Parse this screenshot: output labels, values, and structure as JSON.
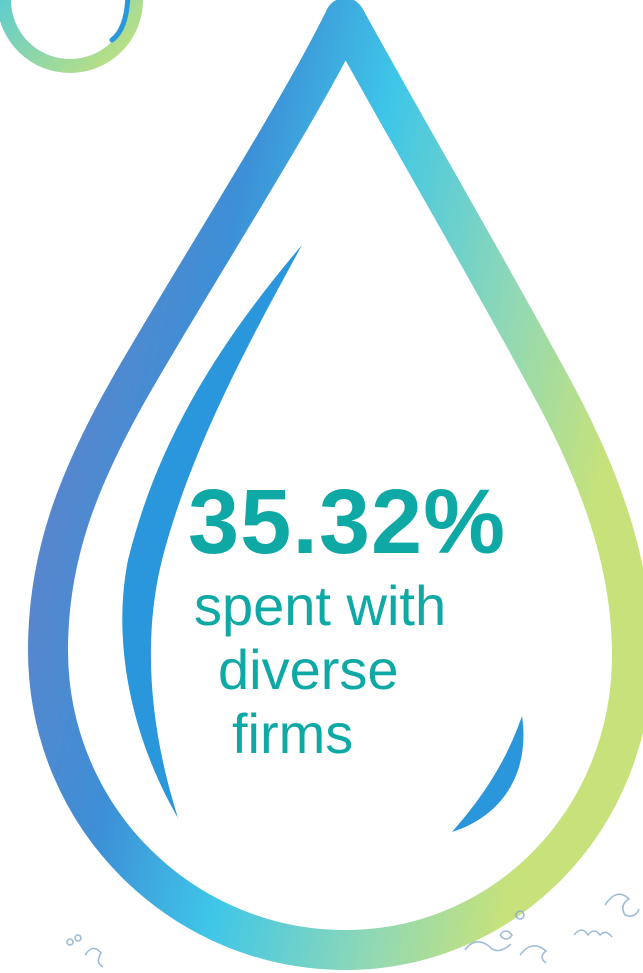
{
  "stat": {
    "value": "35.32%",
    "caption_lines": [
      "spent with",
      "diverse",
      "firms"
    ]
  },
  "colors": {
    "text": "#0fa9a5",
    "gradient_blue": "#3d8fd6",
    "gradient_cyan": "#3ec6e8",
    "gradient_green": "#c7e27a",
    "inner_swoosh": "#2a96dc"
  },
  "icons": [
    "water-drop-outline-icon",
    "ring-icon",
    "inner-highlight-swoosh-icon",
    "handwritten-doodles-decoration"
  ]
}
